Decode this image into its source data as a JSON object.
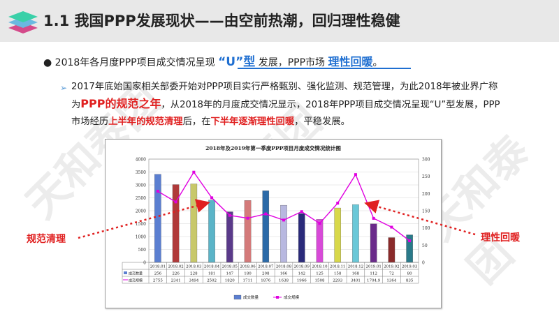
{
  "watermark": "天和泰团",
  "header": {
    "title": "1.1 我国PPP发展现状——由空前热潮，回归理性稳健"
  },
  "bullet": {
    "symbol": "●",
    "text_before": "2018年各月度PPP项目成交情况呈现",
    "highlight_u": "“U”型",
    "text_mid": "发展，PPP市场",
    "highlight_reason": "理性回暖",
    "text_end": "。"
  },
  "paragraph": {
    "p1": "2017年底始国家相关部委开始对PPP项目实行严格甄别、强化监测、规范管理，为此2018年被业界广称为",
    "red1": "PPP的规范之年",
    "p2": "，从2018年的月度成交情况显示，2018年PPP项目成交情况呈现“U”型发展，PPP市场经历",
    "red2": "上半年的规范清理",
    "p3": "后，在",
    "red3": "下半年逐渐理性回暖",
    "p4": "，平稳发展。"
  },
  "annotations": {
    "left": "规范清理",
    "right": "理性回暖"
  },
  "chart_data": {
    "type": "bar",
    "title": "2018年及2019年第一季度PPP项目月度成交情况统计图",
    "categories": [
      "2018.01",
      "2018.02",
      "2018.03",
      "2018.04",
      "2018.05",
      "2018.06",
      "2018.07",
      "2018.08",
      "2018.09",
      "2018.10",
      "2018.11",
      "2018.12",
      "2019.01",
      "2019.02",
      "2019.03"
    ],
    "series": [
      {
        "name": "成交数量",
        "type": "bar",
        "axis": "right",
        "values": [
          256,
          226,
          228,
          181,
          147,
          180,
          208,
          166,
          142,
          125,
          158,
          168,
          112,
          72,
          80
        ],
        "table_values": [
          "256",
          "226",
          "228",
          "181",
          "147",
          "180",
          "208",
          "166",
          "142",
          "125",
          "158",
          "168",
          "112",
          "72",
          "80"
        ]
      },
      {
        "name": "成交规模",
        "type": "line",
        "axis": "left",
        "values": [
          2755,
          2341,
          3494,
          2502,
          1820,
          1711,
          1876,
          1638,
          1966,
          1508,
          2293,
          3401,
          1704.9,
          1364,
          835
        ],
        "table_values": [
          "2755",
          "2341",
          "3494",
          "2502",
          "1820",
          "1711",
          "1876",
          "1638",
          "1966",
          "1508",
          "2293",
          "3401",
          "1704.9",
          "1364",
          "835"
        ]
      }
    ],
    "left_axis": {
      "ticks": [
        "0",
        "500",
        "1000",
        "1500",
        "2000",
        "2500",
        "3000",
        "3500",
        "4000"
      ],
      "range": [
        0,
        4000
      ]
    },
    "right_axis": {
      "ticks": [
        "0",
        "50",
        "100",
        "150",
        "200",
        "250",
        "300"
      ],
      "range": [
        0,
        300
      ]
    },
    "bar_colors": [
      "#5b7fd1",
      "#b03a3a",
      "#c8c86a",
      "#5ab4c8",
      "#5a3a8a",
      "#d47a7a",
      "#2b6aa8",
      "#b8b8e0",
      "#2a2a7a",
      "#d84ad8",
      "#d8d84a",
      "#6ac8d8",
      "#6a2a8a",
      "#8a2a2a",
      "#2a7a8a"
    ],
    "line_color": "#e000e0",
    "legend": {
      "position": "bottom",
      "items": [
        "成交数量",
        "成交规模"
      ]
    },
    "grid": true
  }
}
